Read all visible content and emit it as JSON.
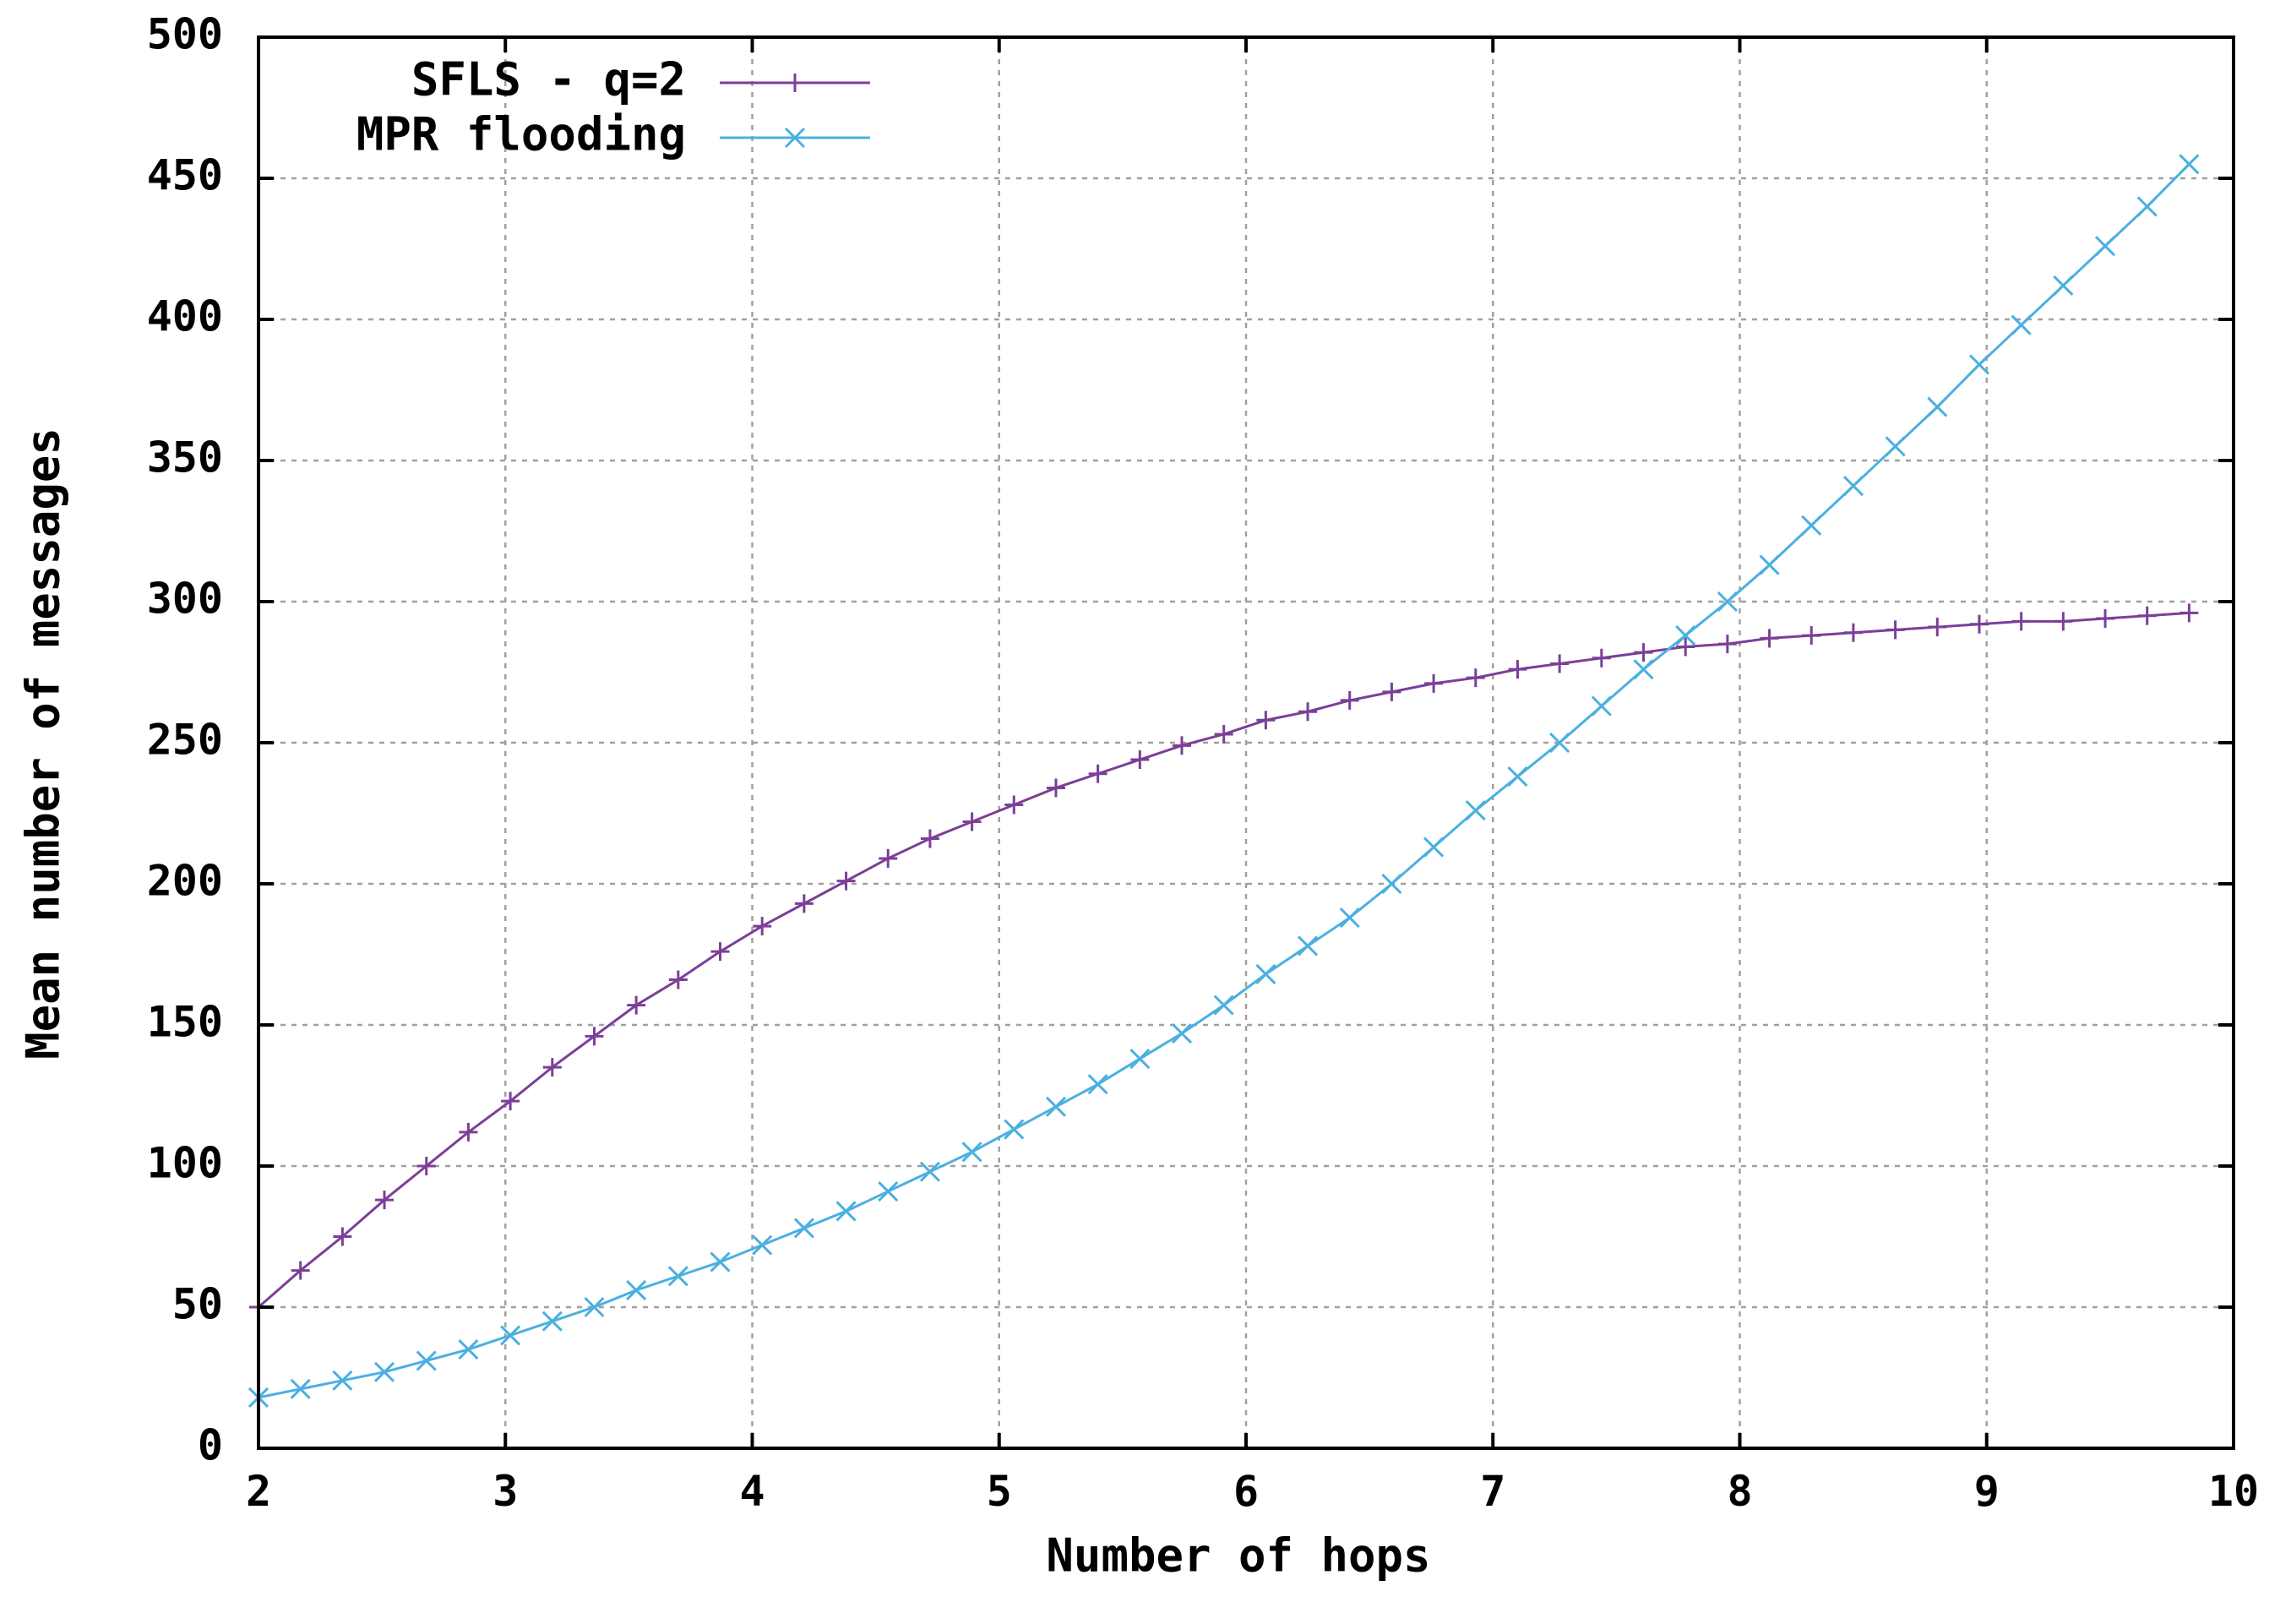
{
  "chart_data": {
    "type": "line",
    "title": "",
    "xlabel": "Number of hops",
    "ylabel": "Mean number of messages",
    "xlim": [
      2,
      10
    ],
    "ylim": [
      0,
      500
    ],
    "xticks": [
      2,
      3,
      4,
      5,
      6,
      7,
      8,
      9,
      10
    ],
    "yticks": [
      0,
      50,
      100,
      150,
      200,
      250,
      300,
      350,
      400,
      450,
      500
    ],
    "grid": true,
    "legend_position": "top-left",
    "x": [
      2.0,
      2.17,
      2.34,
      2.51,
      2.68,
      2.85,
      3.02,
      3.19,
      3.36,
      3.53,
      3.7,
      3.87,
      4.04,
      4.21,
      4.38,
      4.55,
      4.72,
      4.89,
      5.06,
      5.23,
      5.4,
      5.57,
      5.74,
      5.91,
      6.08,
      6.25,
      6.42,
      6.59,
      6.76,
      6.93,
      7.1,
      7.27,
      7.44,
      7.61,
      7.78,
      7.95,
      8.12,
      8.29,
      8.46,
      8.63,
      8.8,
      8.97,
      9.14,
      9.31,
      9.48,
      9.65,
      9.82
    ],
    "series": [
      {
        "name": "SFLS - q=2",
        "color": "#7b3f98",
        "marker": "plus",
        "values": [
          50,
          63,
          75,
          88,
          100,
          112,
          123,
          135,
          146,
          157,
          166,
          176,
          185,
          193,
          201,
          209,
          216,
          222,
          228,
          234,
          239,
          244,
          249,
          253,
          258,
          261,
          265,
          268,
          271,
          273,
          276,
          278,
          280,
          282,
          284,
          285,
          287,
          288,
          289,
          290,
          291,
          292,
          293,
          293,
          294,
          295,
          296
        ]
      },
      {
        "name": "MPR flooding",
        "color": "#4ab0e0",
        "marker": "x",
        "values": [
          18,
          21,
          24,
          27,
          31,
          35,
          40,
          45,
          50,
          56,
          61,
          66,
          72,
          78,
          84,
          91,
          98,
          105,
          113,
          121,
          129,
          138,
          147,
          157,
          168,
          178,
          188,
          200,
          213,
          226,
          238,
          250,
          263,
          276,
          288,
          300,
          313,
          327,
          341,
          355,
          369,
          384,
          398,
          412,
          426,
          440,
          455
        ]
      }
    ]
  }
}
